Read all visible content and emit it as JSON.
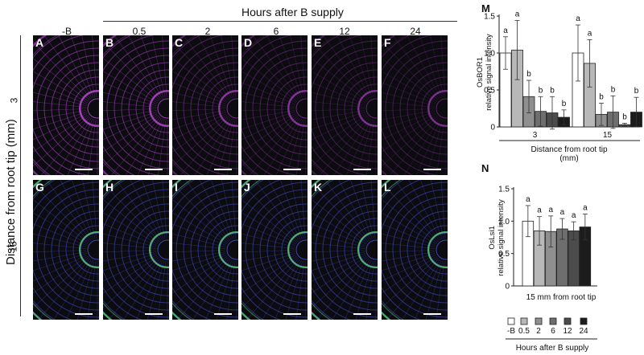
{
  "header": {
    "hours_title": "Hours after B supply",
    "ylabel": "Distance from root tip (mm)",
    "col_labels": [
      "-B",
      "0.5",
      "2",
      "6",
      "12",
      "24"
    ],
    "row_labels": [
      "3",
      "15"
    ]
  },
  "panels": [
    {
      "label": "A"
    },
    {
      "label": "B"
    },
    {
      "label": "C"
    },
    {
      "label": "D"
    },
    {
      "label": "E"
    },
    {
      "label": "F"
    },
    {
      "label": "G"
    },
    {
      "label": "H"
    },
    {
      "label": "I"
    },
    {
      "label": "J"
    },
    {
      "label": "K"
    },
    {
      "label": "L"
    }
  ],
  "colors": {
    "panel_bg": "#0b0b10",
    "magenta": "#b044c8",
    "blue": "#4a58d8",
    "green": "#5fcf7a",
    "bar_fills": [
      "#ffffff",
      "#b8b8b8",
      "#8f8f8f",
      "#6e6e6e",
      "#4c4c4c",
      "#1c1c1c"
    ]
  },
  "chart_data": [
    {
      "panel": "M",
      "type": "bar",
      "ylabel_line1": "OsBOR1",
      "ylabel_line2": "relative signal intensity",
      "ylim": [
        0,
        1.5
      ],
      "yticks": [
        "0",
        "0.5",
        "1.0",
        "1.5"
      ],
      "ytick_values": [
        0,
        0.5,
        1.0,
        1.5
      ],
      "groups": [
        "3",
        "15"
      ],
      "series": [
        "-B",
        "0.5",
        "2",
        "6",
        "12",
        "24"
      ],
      "values": [
        [
          1.0,
          1.04,
          0.41,
          0.21,
          0.19,
          0.13
        ],
        [
          1.0,
          0.86,
          0.17,
          0.2,
          0.03,
          0.2
        ]
      ],
      "errors": [
        [
          0.22,
          0.4,
          0.22,
          0.2,
          0.22,
          0.1
        ],
        [
          0.38,
          0.32,
          0.15,
          0.22,
          0.02,
          0.2
        ]
      ],
      "letters": [
        [
          "a",
          "a",
          "b",
          "b",
          "b",
          "b"
        ],
        [
          "a",
          "a",
          "b",
          "b",
          "b",
          "b"
        ]
      ],
      "xlabel_line1": "Distance from  root tip",
      "xlabel_line2": "(mm)"
    },
    {
      "panel": "N",
      "type": "bar",
      "ylabel_line1": "OsLsi1",
      "ylabel_line2": "relative  signal intensity",
      "ylim": [
        0,
        1.5
      ],
      "yticks": [
        "0",
        "0.5",
        "1.0",
        "1.5"
      ],
      "ytick_values": [
        0,
        0.5,
        1.0,
        1.5
      ],
      "series": [
        "-B",
        "0.5",
        "2",
        "6",
        "12",
        "24"
      ],
      "values": [
        1.0,
        0.85,
        0.84,
        0.88,
        0.85,
        0.91
      ],
      "errors": [
        0.24,
        0.22,
        0.24,
        0.16,
        0.14,
        0.2
      ],
      "letters": [
        "a",
        "a",
        "a",
        "a",
        "a",
        "a"
      ],
      "xlabel": "15 mm   from  root tip",
      "legend_labels": [
        "-B",
        "0.5",
        "2",
        "6",
        "12",
        "24"
      ],
      "legend_title": "Hours after B supply"
    }
  ]
}
